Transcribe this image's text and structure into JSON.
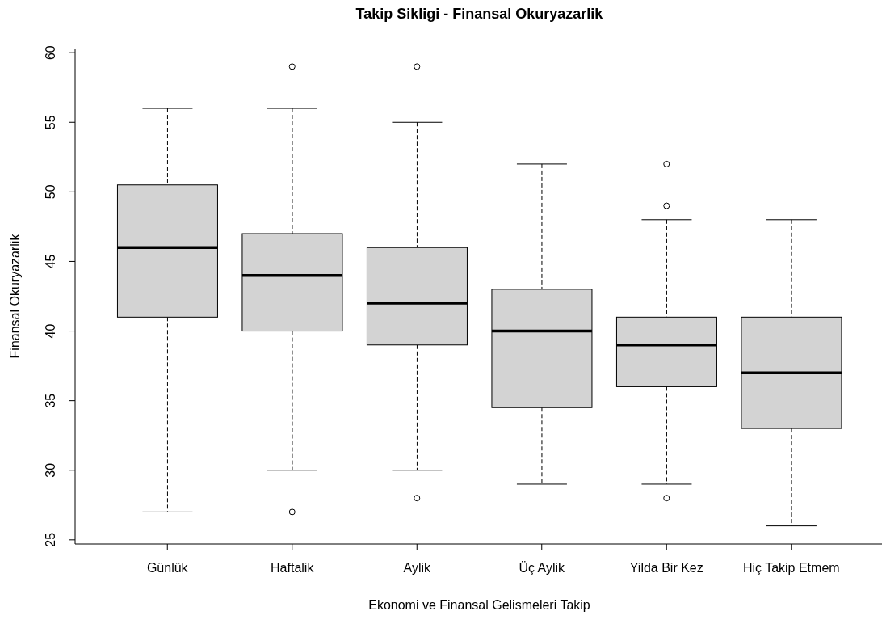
{
  "chart_data": {
    "type": "box",
    "title": "Takip Sikligi - Finansal Okuryazarlik",
    "xlabel": "Ekonomi ve Finansal Gelismeleri Takip",
    "ylabel": "Finansal Okuryazarlik",
    "categories": [
      "Günlük",
      "Haftalik",
      "Aylik",
      "Üç Aylik",
      "Yilda Bir Kez",
      "Hiç Takip Etmem"
    ],
    "boxes": [
      {
        "low": 27,
        "q1": 41,
        "median": 46,
        "q3": 50.5,
        "high": 56
      },
      {
        "low": 30,
        "q1": 40,
        "median": 44,
        "q3": 47,
        "high": 56,
        "outliers": [
          59,
          27
        ]
      },
      {
        "low": 30,
        "q1": 39,
        "median": 42,
        "q3": 46,
        "high": 55,
        "outliers": [
          59,
          28
        ]
      },
      {
        "low": 29,
        "q1": 34.5,
        "median": 40,
        "q3": 43,
        "high": 52
      },
      {
        "low": 29,
        "q1": 36,
        "median": 39,
        "q3": 41,
        "high": 48,
        "outliers": [
          52,
          49,
          28
        ]
      },
      {
        "low": 26,
        "q1": 33,
        "median": 37,
        "q3": 41,
        "high": 48
      }
    ],
    "color": "#d3d3d3",
    "ylim": [
      24.7,
      60.3
    ],
    "yticks": [
      25,
      30,
      35,
      40,
      45,
      50,
      55,
      60
    ]
  }
}
